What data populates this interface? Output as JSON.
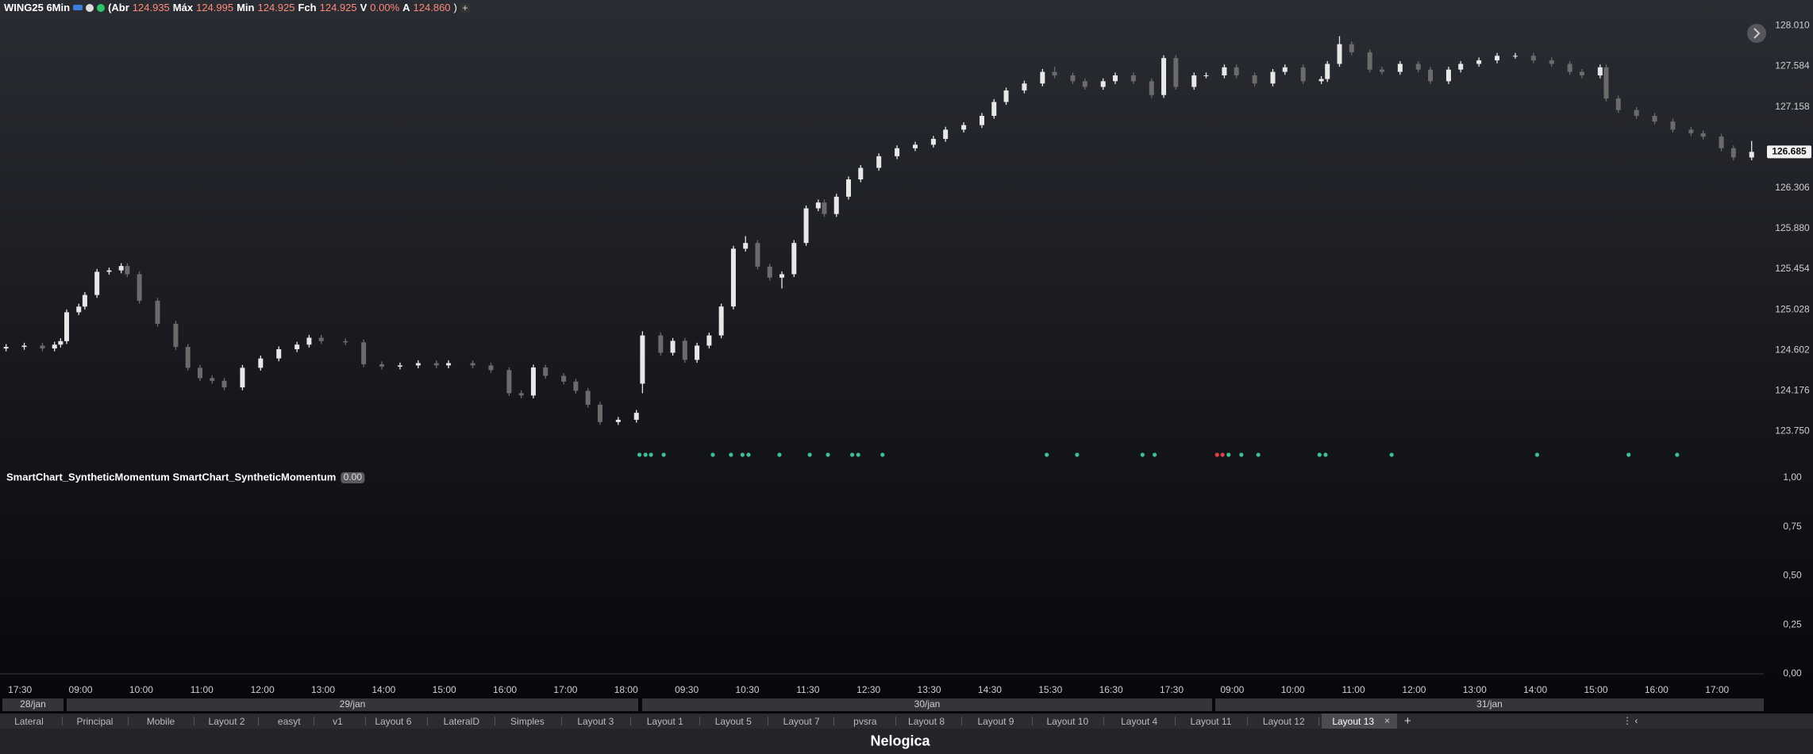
{
  "header": {
    "symbol": "WING25 6Min",
    "fields": [
      {
        "label": "(Abr",
        "value": "124.935"
      },
      {
        "label": "Máx",
        "value": "124.995"
      },
      {
        "label": "Min",
        "value": "124.925"
      },
      {
        "label": "Fch",
        "value": "124.925"
      },
      {
        "label": "V",
        "value": "0.00%"
      },
      {
        "label": "A",
        "value": "124.860"
      }
    ],
    "suffix": ")"
  },
  "chart_data": [
    {
      "type": "candlestick",
      "up_color": "#e8e8e8",
      "down_color": "#6b6b6b",
      "x": [
        1,
        4,
        7,
        9,
        10,
        11,
        13,
        14,
        16,
        18,
        20,
        21,
        23,
        26,
        29,
        31,
        33,
        35,
        37,
        40,
        43,
        46,
        49,
        51,
        53,
        57,
        60,
        63,
        66,
        69,
        72,
        74,
        78,
        81,
        84,
        86,
        88,
        90,
        93,
        95,
        97,
        99,
        102,
        105,
        106,
        109,
        111,
        113,
        115,
        117,
        119,
        121,
        123,
        125,
        127,
        129,
        131,
        133,
        135,
        136,
        138,
        140,
        142,
        145,
        148,
        151,
        154,
        156,
        159,
        162,
        164,
        166,
        169,
        172,
        174,
        177,
        179,
        182,
        184,
        187,
        190,
        192,
        194,
        197,
        199,
        202,
        204,
        207,
        210,
        212,
        215,
        218,
        219,
        221,
        223,
        226,
        228,
        231,
        234,
        236,
        239,
        241,
        244,
        247,
        250,
        253,
        256,
        259,
        261,
        264,
        265,
        267,
        270,
        273,
        276,
        279,
        281,
        284,
        286,
        289
      ],
      "open": [
        124.62,
        124.636,
        124.65,
        124.62,
        124.66,
        124.697,
        125.0,
        125.06,
        125.182,
        125.425,
        125.44,
        125.486,
        125.4,
        125.121,
        124.879,
        124.636,
        124.417,
        124.308,
        124.28,
        124.211,
        124.417,
        124.515,
        124.612,
        124.66,
        124.733,
        124.697,
        124.684,
        124.454,
        124.43,
        124.442,
        124.466,
        124.442,
        124.466,
        124.442,
        124.393,
        124.15,
        124.126,
        124.42,
        124.332,
        124.272,
        124.175,
        124.029,
        123.847,
        123.871,
        124.25,
        124.757,
        124.575,
        124.7,
        124.5,
        124.65,
        124.757,
        125.061,
        125.668,
        125.728,
        125.48,
        125.364,
        125.4,
        125.728,
        126.092,
        126.153,
        126.032,
        126.214,
        126.396,
        126.517,
        126.639,
        126.723,
        126.76,
        126.821,
        126.918,
        126.966,
        127.063,
        127.209,
        127.33,
        127.403,
        127.525,
        127.488,
        127.427,
        127.367,
        127.427,
        127.488,
        127.427,
        127.282,
        127.67,
        127.367,
        127.488,
        127.488,
        127.573,
        127.488,
        127.403,
        127.525,
        127.573,
        127.427,
        127.45,
        127.609,
        127.816,
        127.731,
        127.549,
        127.525,
        127.609,
        127.549,
        127.427,
        127.549,
        127.609,
        127.646,
        127.694,
        127.694,
        127.646,
        127.609,
        127.525,
        127.488,
        127.573,
        127.245,
        127.124,
        127.063,
        127.003,
        126.918,
        126.881,
        126.845,
        126.723,
        126.626
      ],
      "high": [
        124.666,
        124.68,
        124.68,
        124.69,
        124.727,
        125.03,
        125.09,
        125.212,
        125.455,
        125.47,
        125.516,
        125.516,
        125.43,
        125.151,
        124.909,
        124.666,
        124.447,
        124.338,
        124.31,
        124.447,
        124.545,
        124.642,
        124.69,
        124.763,
        124.763,
        124.727,
        124.714,
        124.484,
        124.472,
        124.496,
        124.496,
        124.496,
        124.496,
        124.472,
        124.423,
        124.18,
        124.45,
        124.45,
        124.362,
        124.302,
        124.205,
        124.059,
        123.901,
        123.974,
        124.8,
        124.787,
        124.73,
        124.73,
        124.68,
        124.787,
        125.091,
        125.698,
        125.8,
        125.758,
        125.51,
        125.43,
        125.758,
        126.122,
        126.183,
        126.183,
        126.244,
        126.426,
        126.547,
        126.669,
        126.753,
        126.79,
        126.851,
        126.948,
        126.996,
        127.093,
        127.239,
        127.36,
        127.433,
        127.555,
        127.58,
        127.518,
        127.457,
        127.457,
        127.518,
        127.518,
        127.457,
        127.7,
        127.7,
        127.518,
        127.518,
        127.603,
        127.603,
        127.518,
        127.555,
        127.603,
        127.603,
        127.48,
        127.639,
        127.9,
        127.846,
        127.761,
        127.579,
        127.639,
        127.639,
        127.579,
        127.579,
        127.639,
        127.676,
        127.724,
        127.724,
        127.724,
        127.676,
        127.639,
        127.555,
        127.603,
        127.603,
        127.275,
        127.154,
        127.093,
        127.033,
        126.948,
        126.911,
        126.875,
        126.753,
        126.8
      ],
      "low": [
        124.59,
        124.606,
        124.59,
        124.59,
        124.63,
        124.667,
        124.97,
        125.03,
        125.152,
        125.395,
        125.41,
        125.37,
        125.091,
        124.849,
        124.606,
        124.387,
        124.278,
        124.25,
        124.181,
        124.181,
        124.387,
        124.485,
        124.582,
        124.63,
        124.667,
        124.654,
        124.424,
        124.4,
        124.4,
        124.412,
        124.412,
        124.412,
        124.412,
        124.363,
        124.12,
        124.096,
        124.096,
        124.302,
        124.242,
        124.145,
        123.999,
        123.817,
        123.817,
        123.841,
        124.15,
        124.545,
        124.545,
        124.47,
        124.47,
        124.62,
        124.727,
        125.031,
        125.638,
        125.45,
        125.334,
        125.25,
        125.37,
        125.698,
        126.062,
        126.002,
        126.002,
        126.184,
        126.366,
        126.487,
        126.609,
        126.693,
        126.73,
        126.791,
        126.888,
        126.936,
        127.033,
        127.179,
        127.3,
        127.373,
        127.458,
        127.397,
        127.337,
        127.337,
        127.397,
        127.397,
        127.252,
        127.252,
        127.337,
        127.337,
        127.458,
        127.458,
        127.458,
        127.373,
        127.373,
        127.495,
        127.397,
        127.397,
        127.42,
        127.579,
        127.701,
        127.519,
        127.495,
        127.495,
        127.519,
        127.397,
        127.397,
        127.519,
        127.579,
        127.616,
        127.664,
        127.616,
        127.579,
        127.495,
        127.458,
        127.458,
        127.215,
        127.094,
        127.033,
        126.973,
        126.888,
        126.851,
        126.815,
        126.693,
        126.596,
        126.596
      ],
      "close": [
        124.636,
        124.65,
        124.62,
        124.66,
        124.697,
        125.0,
        125.06,
        125.182,
        125.425,
        125.44,
        125.486,
        125.4,
        125.121,
        124.879,
        124.636,
        124.417,
        124.308,
        124.28,
        124.211,
        124.417,
        124.515,
        124.612,
        124.66,
        124.733,
        124.697,
        124.684,
        124.454,
        124.43,
        124.442,
        124.466,
        124.442,
        124.466,
        124.442,
        124.393,
        124.15,
        124.126,
        124.42,
        124.332,
        124.272,
        124.175,
        124.029,
        123.847,
        123.871,
        123.944,
        124.757,
        124.575,
        124.7,
        124.5,
        124.65,
        124.757,
        125.061,
        125.668,
        125.728,
        125.48,
        125.364,
        125.4,
        125.728,
        126.092,
        126.153,
        126.032,
        126.214,
        126.396,
        126.517,
        126.639,
        126.723,
        126.76,
        126.821,
        126.918,
        126.966,
        127.063,
        127.209,
        127.33,
        127.403,
        127.525,
        127.488,
        127.427,
        127.367,
        127.427,
        127.488,
        127.427,
        127.282,
        127.67,
        127.367,
        127.488,
        127.488,
        127.573,
        127.488,
        127.403,
        127.525,
        127.573,
        127.427,
        127.45,
        127.609,
        127.816,
        127.731,
        127.549,
        127.525,
        127.609,
        127.549,
        127.427,
        127.549,
        127.609,
        127.646,
        127.694,
        127.694,
        127.646,
        127.609,
        127.525,
        127.488,
        127.573,
        127.245,
        127.124,
        127.063,
        127.003,
        126.918,
        126.881,
        126.845,
        126.723,
        126.626,
        126.685
      ],
      "signals": {
        "x": [
          105.5,
          106.5,
          107.4,
          109.5,
          117.6,
          120.6,
          122.5,
          123.5,
          128.6,
          133.6,
          136.6,
          140.6,
          141.6,
          145.6,
          172.7,
          177.7,
          188.5,
          190.5,
          200.8,
          201.7,
          202.7,
          204.8,
          207.6,
          217.7,
          218.7,
          229.6,
          253.6,
          268.7,
          276.7
        ],
        "colors": [
          "#3fbf8f",
          "#3fbf8f",
          "#3fbf8f",
          "#3fbf8f",
          "#3fbf8f",
          "#3fbf8f",
          "#3fbf8f",
          "#3fbf8f",
          "#3fbf8f",
          "#3fbf8f",
          "#3fbf8f",
          "#3fbf8f",
          "#3fbf8f",
          "#3fbf8f",
          "#3fbf8f",
          "#3fbf8f",
          "#3fbf8f",
          "#3fbf8f",
          "#e0404a",
          "#e0404a",
          "#3fbf8f",
          "#3fbf8f",
          "#3fbf8f",
          "#3fbf8f",
          "#3fbf8f",
          "#3fbf8f",
          "#3fbf8f",
          "#3fbf8f",
          "#3fbf8f"
        ]
      },
      "xlim": [
        0,
        291
      ],
      "xticks": [
        {
          "value": 3.3,
          "label": "17:30"
        },
        {
          "value": 13.3,
          "label": "09:00"
        },
        {
          "value": 23.3,
          "label": "10:00"
        },
        {
          "value": 33.3,
          "label": "11:00"
        },
        {
          "value": 43.3,
          "label": "12:00"
        },
        {
          "value": 53.3,
          "label": "13:00"
        },
        {
          "value": 63.3,
          "label": "14:00"
        },
        {
          "value": 73.3,
          "label": "15:00"
        },
        {
          "value": 83.3,
          "label": "16:00"
        },
        {
          "value": 93.3,
          "label": "17:00"
        },
        {
          "value": 103.3,
          "label": "18:00"
        },
        {
          "value": 113.3,
          "label": "09:30"
        },
        {
          "value": 123.3,
          "label": "10:30"
        },
        {
          "value": 133.3,
          "label": "11:30"
        },
        {
          "value": 143.3,
          "label": "12:30"
        },
        {
          "value": 153.3,
          "label": "13:30"
        },
        {
          "value": 163.3,
          "label": "14:30"
        },
        {
          "value": 173.3,
          "label": "15:30"
        },
        {
          "value": 183.3,
          "label": "16:30"
        },
        {
          "value": 193.3,
          "label": "17:30"
        },
        {
          "value": 203.3,
          "label": "09:00"
        },
        {
          "value": 213.3,
          "label": "10:00"
        },
        {
          "value": 223.3,
          "label": "11:00"
        },
        {
          "value": 233.3,
          "label": "12:00"
        },
        {
          "value": 243.3,
          "label": "13:00"
        },
        {
          "value": 253.3,
          "label": "14:00"
        },
        {
          "value": 263.3,
          "label": "15:00"
        },
        {
          "value": 273.3,
          "label": "16:00"
        },
        {
          "value": 283.3,
          "label": "17:00"
        }
      ],
      "dates": [
        "28/jan",
        "29/jan",
        "30/jan",
        "31/jan"
      ],
      "ylim": [
        123.42,
        128.28
      ],
      "yticks": [
        {
          "value": 128.01,
          "label": "128.010"
        },
        127.584,
        127.158,
        126.306,
        {
          "value": 125.88,
          "label": "125.880"
        },
        125.454,
        125.028,
        124.602,
        124.176,
        {
          "value": 123.75,
          "label": "123.750"
        }
      ]
    },
    {
      "type": "indicator",
      "title": "SmartChart_SyntheticMomentum SmartChart_SyntheticMomentum",
      "value_label": "0.00",
      "ylim": [
        0,
        1
      ],
      "yticks": [
        {
          "value": 1,
          "label": "1,00"
        },
        {
          "value": 0.75,
          "label": "0,75"
        },
        {
          "value": 0.5,
          "label": "0,50"
        },
        {
          "value": 0.25,
          "label": "0,25"
        },
        {
          "value": 0,
          "label": "0,00"
        }
      ]
    }
  ],
  "tabs": [
    "Lateral",
    "Principal",
    "Mobile",
    "Layout 2",
    "easyt",
    "v1",
    "Layout 6",
    "LateralD",
    "Simples",
    "Layout 3",
    "Layout 1",
    "Layout 5",
    "Layout 7",
    "pvsra",
    "Layout 8",
    "Layout 9",
    "Layout 10",
    "Layout 4",
    "Layout 11",
    "Layout 12",
    "Layout 13"
  ],
  "footer": {
    "brand": "Nelogica"
  }
}
